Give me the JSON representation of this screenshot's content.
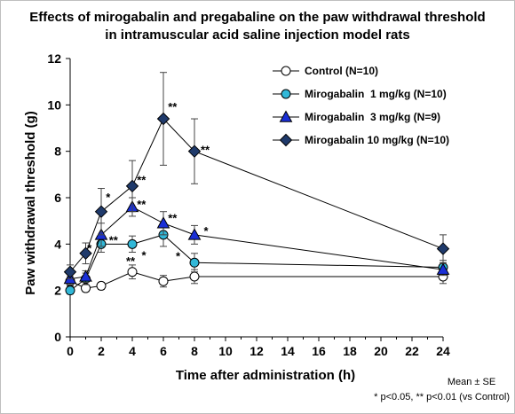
{
  "chart_data": {
    "type": "line",
    "title": [
      "Effects of mirogabalin and pregabaline on the paw withdrawal threshold",
      "in intramuscular acid saline injection model rats"
    ],
    "xlabel": "Time after administration (h)",
    "ylabel": "Paw withdrawal threshold (g)",
    "xlim": [
      0,
      24
    ],
    "ylim": [
      0,
      12
    ],
    "x_ticks": [
      "0",
      "2",
      "4",
      "6",
      "8",
      "10",
      "12",
      "14",
      "16",
      "18",
      "20",
      "22",
      "24"
    ],
    "y_ticks": [
      "0",
      "2",
      "4",
      "6",
      "8",
      "10",
      "12"
    ],
    "legend_position": "top-right",
    "grid": false,
    "series": [
      {
        "name": "Control (N=10)",
        "marker": "circle",
        "fill": "#ffffff",
        "stroke": "#000000",
        "points": [
          {
            "x": 0,
            "y": 2.4,
            "err": 0.2
          },
          {
            "x": 1,
            "y": 2.1,
            "err": 0.15
          },
          {
            "x": 2,
            "y": 2.2,
            "err": 0.15
          },
          {
            "x": 4,
            "y": 2.8,
            "err": 0.3
          },
          {
            "x": 6,
            "y": 2.4,
            "err": 0.25
          },
          {
            "x": 8,
            "y": 2.6,
            "err": 0.3
          },
          {
            "x": 24,
            "y": 2.6,
            "err": 0.3
          }
        ]
      },
      {
        "name": "Mirogabalin 1 mg/kg (N=10)",
        "legend_label": "Mirogabalin  1 mg/kg (N=10)",
        "marker": "circle",
        "fill": "#31b8d8",
        "stroke": "#000000",
        "points": [
          {
            "x": 0,
            "y": 2.0,
            "err": 0.15
          },
          {
            "x": 1,
            "y": 2.5,
            "err": 0.25
          },
          {
            "x": 2,
            "y": 4.0,
            "err": 0.35
          },
          {
            "x": 4,
            "y": 4.0,
            "err": 0.35
          },
          {
            "x": 6,
            "y": 4.4,
            "err": 0.5
          },
          {
            "x": 8,
            "y": 3.2,
            "err": 0.4
          },
          {
            "x": 24,
            "y": 3.0,
            "err": 0.3
          }
        ]
      },
      {
        "name": "Mirogabalin 3 mg/kg (N=9)",
        "legend_label": "Mirogabalin  3 mg/kg (N=9)",
        "marker": "triangle",
        "fill": "#1a2fd6",
        "stroke": "#000000",
        "points": [
          {
            "x": 0,
            "y": 2.5,
            "err": 0.25
          },
          {
            "x": 1,
            "y": 2.6,
            "err": 0.25
          },
          {
            "x": 2,
            "y": 4.4,
            "err": 0.5
          },
          {
            "x": 4,
            "y": 5.6,
            "err": 0.4
          },
          {
            "x": 6,
            "y": 4.9,
            "err": 0.5
          },
          {
            "x": 8,
            "y": 4.4,
            "err": 0.4
          },
          {
            "x": 24,
            "y": 2.9,
            "err": 0.25
          }
        ]
      },
      {
        "name": "Mirogabalin 10 mg/kg (N=10)",
        "marker": "diamond",
        "fill": "#1f3a6b",
        "stroke": "#000000",
        "points": [
          {
            "x": 0,
            "y": 2.8,
            "err": 0.3
          },
          {
            "x": 1,
            "y": 3.6,
            "err": 0.45
          },
          {
            "x": 2,
            "y": 5.4,
            "err": 1.0
          },
          {
            "x": 4,
            "y": 6.5,
            "err": 1.1
          },
          {
            "x": 6,
            "y": 9.4,
            "err": 2.0
          },
          {
            "x": 8,
            "y": 8.0,
            "err": 1.4
          },
          {
            "x": 24,
            "y": 3.8,
            "err": 0.6
          }
        ]
      }
    ],
    "annotations": [
      {
        "text": "*",
        "x": 1.1,
        "y": 3.65
      },
      {
        "text": "*",
        "x": 2.3,
        "y": 5.85
      },
      {
        "text": "**",
        "x": 2.5,
        "y": 4.0
      },
      {
        "text": "**",
        "x": 4.3,
        "y": 6.6
      },
      {
        "text": "**",
        "x": 4.3,
        "y": 5.55
      },
      {
        "text": "**",
        "x": 3.6,
        "y": 3.1
      },
      {
        "text": "*",
        "x": 4.6,
        "y": 3.35
      },
      {
        "text": "**",
        "x": 6.3,
        "y": 9.75
      },
      {
        "text": "**",
        "x": 6.3,
        "y": 4.95
      },
      {
        "text": "*",
        "x": 6.8,
        "y": 3.3
      },
      {
        "text": "**",
        "x": 8.4,
        "y": 7.9
      },
      {
        "text": "*",
        "x": 8.6,
        "y": 4.4
      }
    ],
    "footnotes": [
      "Mean ± SE",
      "* p<0.05, ** p<0.01 (vs Control)"
    ]
  }
}
